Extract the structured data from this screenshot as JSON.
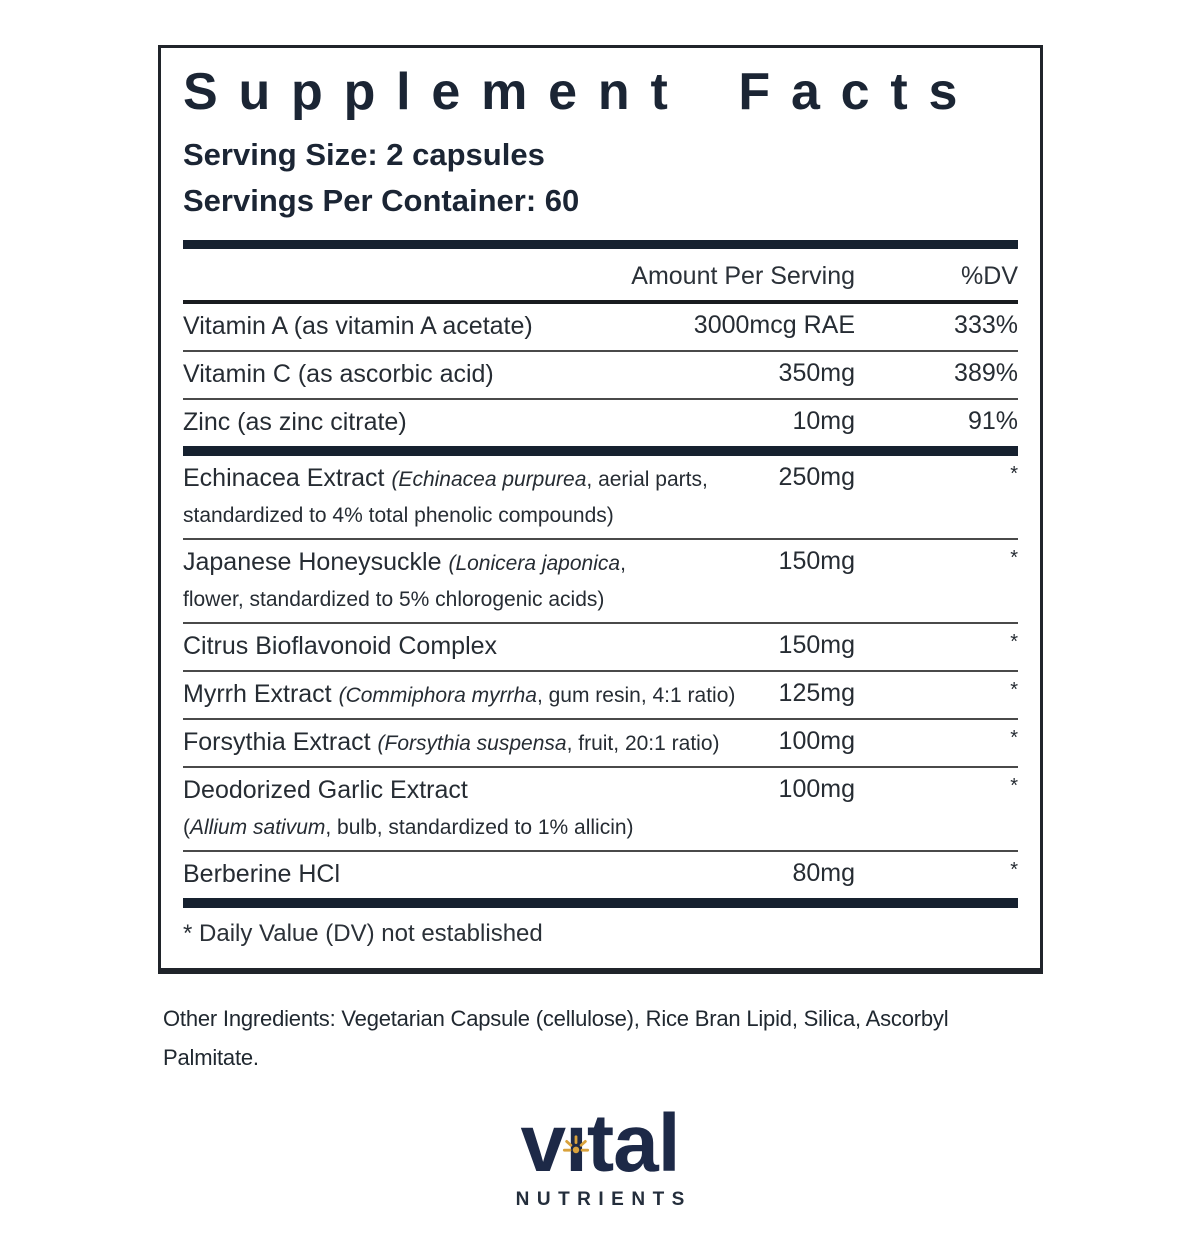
{
  "colors": {
    "navy_text": "#1b2534",
    "bar": "#16212f",
    "logo_navy": "#1d2947",
    "logo_gold": "#d9a23c"
  },
  "panel": {
    "title": "Supplement Facts",
    "serving_size": "Serving Size: 2 capsules",
    "servings_per_container": "Servings Per Container: 60",
    "footnote": "* Daily Value (DV) not established"
  },
  "table": {
    "columns": {
      "amount": "Amount Per Serving",
      "dv": "%DV"
    },
    "sections": [
      {
        "rows": [
          {
            "name": [
              [
                "Vitamin A (as vitamin A acetate)",
                "n"
              ]
            ],
            "amount": "3000mcg RAE",
            "dv": "333%"
          },
          {
            "name": [
              [
                "Vitamin C (as ascorbic acid)",
                "n"
              ]
            ],
            "amount": "350mg",
            "dv": "389%"
          },
          {
            "name": [
              [
                "Zinc (as zinc citrate)",
                "n"
              ]
            ],
            "amount": "10mg",
            "dv": "91%"
          }
        ]
      },
      {
        "rows": [
          {
            "name": [
              [
                "Echinacea Extract ",
                "n"
              ],
              [
                "(Echinacea purpurea",
                "si"
              ],
              [
                ", aerial parts,",
                "s"
              ]
            ],
            "name2": [
              [
                "standardized to 4% total phenolic compounds)",
                "s"
              ]
            ],
            "amount": "250mg",
            "dv": "*"
          },
          {
            "name": [
              [
                "Japanese Honeysuckle ",
                "n"
              ],
              [
                "(Lonicera japonica",
                "si"
              ],
              [
                ",",
                "s"
              ]
            ],
            "name2": [
              [
                "flower, standardized to 5% chlorogenic acids)",
                "s"
              ]
            ],
            "amount": "150mg",
            "dv": "*"
          },
          {
            "name": [
              [
                "Citrus Bioflavonoid Complex",
                "n"
              ]
            ],
            "amount": "150mg",
            "dv": "*"
          },
          {
            "name": [
              [
                "Myrrh Extract ",
                "n"
              ],
              [
                "(Commiphora myrrha",
                "si"
              ],
              [
                ", gum resin, 4:1 ratio)",
                "s"
              ]
            ],
            "amount": "125mg",
            "dv": "*"
          },
          {
            "name": [
              [
                "Forsythia Extract ",
                "n"
              ],
              [
                "(Forsythia suspensa",
                "si"
              ],
              [
                ", fruit, 20:1 ratio)",
                "s"
              ]
            ],
            "amount": "100mg",
            "dv": "*"
          },
          {
            "name": [
              [
                "Deodorized Garlic Extract",
                "n"
              ]
            ],
            "name2": [
              [
                "(",
                "s"
              ],
              [
                "Allium sativum",
                "si"
              ],
              [
                ", bulb, standardized to 1% allicin)",
                "s"
              ]
            ],
            "amount": "100mg",
            "dv": "*"
          },
          {
            "name": [
              [
                "Berberine HCl",
                "n"
              ]
            ],
            "amount": "80mg",
            "dv": "*"
          }
        ]
      }
    ]
  },
  "other_ingredients": "Other Ingredients: Vegetarian Capsule (cellulose), Rice Bran Lipid, Silica, Ascorbyl Palmitate.",
  "logo": {
    "word_pre": "v",
    "word_i": "ı",
    "word_post": "tal",
    "subtext": "NUTRIENTS"
  }
}
